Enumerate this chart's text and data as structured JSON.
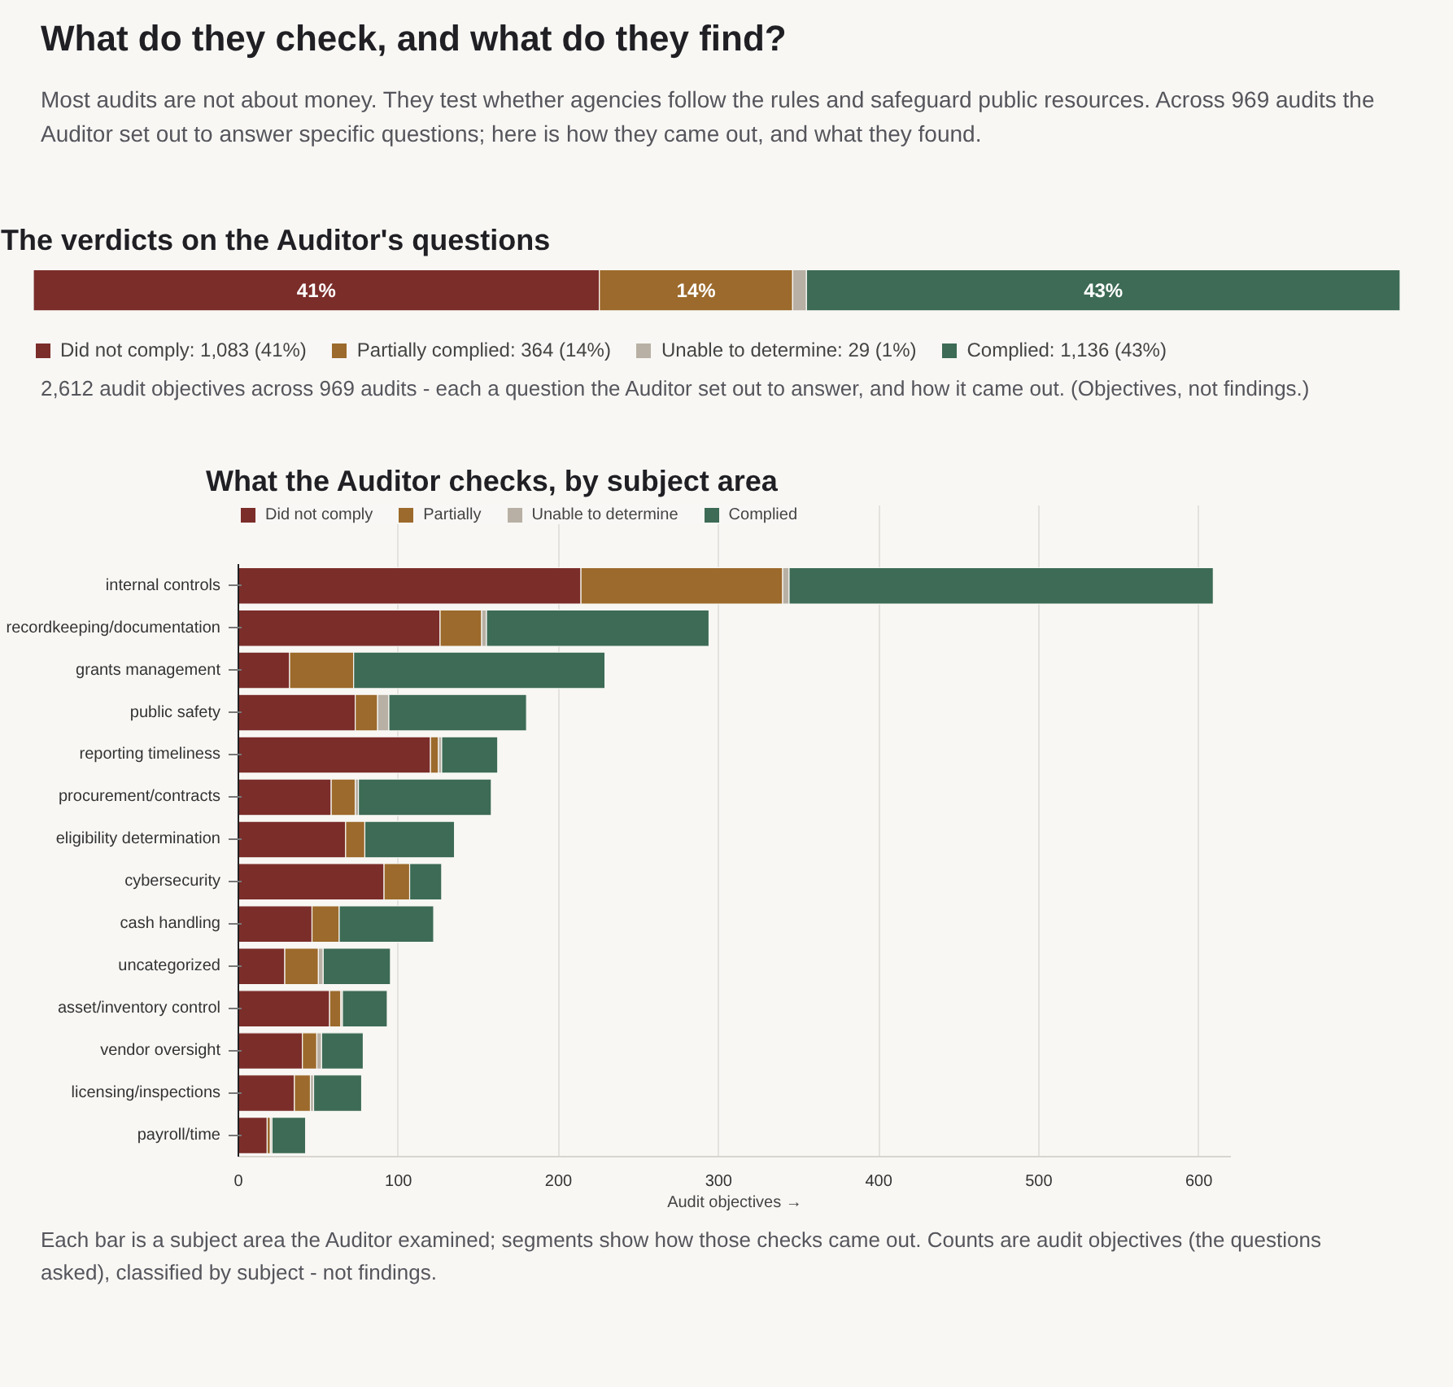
{
  "chart_data": [
    {
      "type": "other",
      "title": "What do they check, and what do they find?",
      "subtitle": "Most audits are not about money. They test whether agencies follow the rules and safeguard public resources. Across 969 audits the Auditor set out to answer specific questions; here is how they came out, and what they found."
    },
    {
      "type": "bar",
      "orientation": "horizontal",
      "stacked": true,
      "title": "The verdicts on the Auditor's questions",
      "categories": [
        null
      ],
      "legend": "bottom",
      "series": [
        {
          "name": "Did not comply: 1,083 (41%)",
          "color": "#7b2d2a",
          "values": [
            41
          ],
          "value_labels": [
            "41%"
          ]
        },
        {
          "name": "Partially complied: 364 (14%)",
          "color": "#9c6a2c",
          "values": [
            14
          ],
          "value_labels": [
            "14%"
          ]
        },
        {
          "name": "Unable to determine: 29 (1%)",
          "color": "#b8b0a4",
          "values": [
            1
          ],
          "value_labels": [
            null
          ]
        },
        {
          "name": "Complied: 1,136 (43%)",
          "color": "#3d6b55",
          "values": [
            43
          ],
          "value_labels": [
            "43%"
          ]
        }
      ],
      "annotations": [
        "2,612 audit objectives across 969 audits - each a question the Auditor set out to answer, and how it came out. (Objectives, not findings.)"
      ]
    },
    {
      "type": "bar",
      "orientation": "horizontal",
      "stacked": true,
      "title": "What the Auditor checks, by subject area",
      "xlabel": "Audit objectives →",
      "legend": "top left",
      "grid": "x",
      "categories": [
        "internal controls",
        "recordkeeping/documentation",
        "grants management",
        "public safety",
        "reporting timeliness",
        "procurement/contracts",
        "eligibility determination",
        "cybersecurity",
        "cash handling",
        "uncategorized",
        "asset/inventory control",
        "vendor oversight",
        "licensing/inspections",
        "payroll/time"
      ],
      "xlim": [
        0,
        620
      ],
      "xticks": [
        0,
        100,
        200,
        300,
        400,
        500,
        600
      ],
      "series": [
        {
          "name": "Did not comply",
          "color": "#7b2d2a",
          "values": [
            214,
            126,
            32,
            73,
            120,
            58,
            67,
            91,
            46,
            29,
            57,
            40,
            35,
            18
          ]
        },
        {
          "name": "Partially",
          "color": "#9c6a2c",
          "values": [
            126,
            26,
            40,
            14,
            5,
            15,
            12,
            16,
            17,
            21,
            7,
            9,
            10,
            2
          ]
        },
        {
          "name": "Unable to determine",
          "color": "#b8b0a4",
          "values": [
            4,
            3,
            0,
            7,
            2,
            2,
            0,
            0,
            0,
            3,
            1,
            3,
            2,
            1
          ]
        },
        {
          "name": "Complied",
          "color": "#3d6b55",
          "values": [
            265,
            139,
            157,
            86,
            35,
            83,
            56,
            20,
            59,
            42,
            28,
            26,
            30,
            21
          ]
        }
      ],
      "annotations": [
        "Each bar is a subject area the Auditor examined; segments show how those checks came out. Counts are audit objectives (the questions asked), classified by subject - not findings."
      ]
    }
  ]
}
